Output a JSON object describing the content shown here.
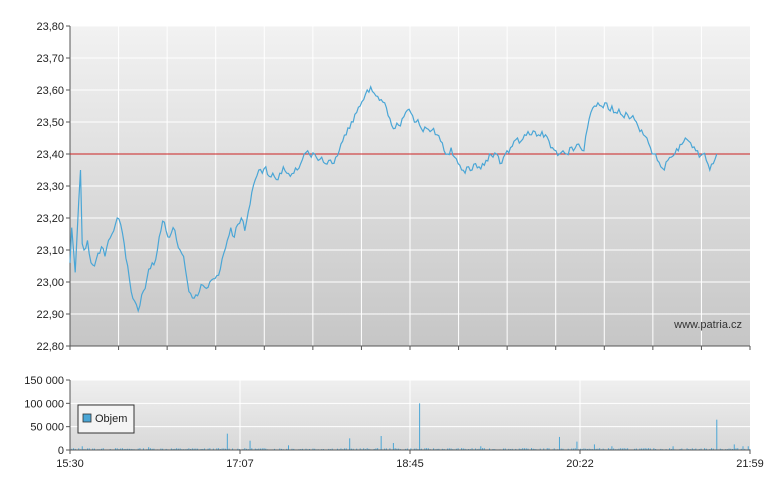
{
  "watermark": "www.patria.cz",
  "colors": {
    "price_line": "#4aa6d6",
    "reference_line": "#cc2222",
    "volume": "#4aa6d6"
  },
  "chart_data": [
    {
      "type": "line",
      "name": "price",
      "ylim": [
        22.8,
        23.8
      ],
      "y_ticks": [
        "22,80",
        "22,90",
        "23,00",
        "23,10",
        "23,20",
        "23,30",
        "23,40",
        "23,50",
        "23,60",
        "23,70",
        "23,80"
      ],
      "reference_value": 23.4,
      "x_range_minutes": [
        930,
        1319
      ],
      "grid": true,
      "points": [
        [
          930,
          23.06
        ],
        [
          931,
          23.17
        ],
        [
          933,
          23.03
        ],
        [
          935,
          23.25
        ],
        [
          936,
          23.35
        ],
        [
          937,
          23.12
        ],
        [
          938,
          23.1
        ],
        [
          940,
          23.13
        ],
        [
          942,
          23.06
        ],
        [
          944,
          23.05
        ],
        [
          946,
          23.09
        ],
        [
          948,
          23.11
        ],
        [
          950,
          23.08
        ],
        [
          952,
          23.13
        ],
        [
          954,
          23.15
        ],
        [
          956,
          23.18
        ],
        [
          957,
          23.2
        ],
        [
          959,
          23.18
        ],
        [
          961,
          23.12
        ],
        [
          963,
          23.05
        ],
        [
          965,
          22.97
        ],
        [
          967,
          22.94
        ],
        [
          969,
          22.91
        ],
        [
          971,
          22.96
        ],
        [
          973,
          22.98
        ],
        [
          975,
          23.04
        ],
        [
          977,
          23.06
        ],
        [
          979,
          23.07
        ],
        [
          980,
          23.1
        ],
        [
          982,
          23.16
        ],
        [
          983,
          23.19
        ],
        [
          985,
          23.16
        ],
        [
          987,
          23.14
        ],
        [
          989,
          23.17
        ],
        [
          991,
          23.13
        ],
        [
          993,
          23.1
        ],
        [
          995,
          23.08
        ],
        [
          996,
          23.04
        ],
        [
          998,
          22.97
        ],
        [
          1000,
          22.95
        ],
        [
          1002,
          22.96
        ],
        [
          1004,
          22.97
        ],
        [
          1006,
          22.99
        ],
        [
          1008,
          22.98
        ],
        [
          1010,
          23.0
        ],
        [
          1012,
          23.01
        ],
        [
          1014,
          23.02
        ],
        [
          1016,
          23.04
        ],
        [
          1018,
          23.09
        ],
        [
          1020,
          23.13
        ],
        [
          1022,
          23.17
        ],
        [
          1024,
          23.14
        ],
        [
          1026,
          23.18
        ],
        [
          1028,
          23.2
        ],
        [
          1030,
          23.16
        ],
        [
          1032,
          23.22
        ],
        [
          1034,
          23.28
        ],
        [
          1036,
          23.32
        ],
        [
          1038,
          23.35
        ],
        [
          1040,
          23.34
        ],
        [
          1042,
          23.36
        ],
        [
          1044,
          23.33
        ],
        [
          1046,
          23.34
        ],
        [
          1048,
          23.32
        ],
        [
          1050,
          23.34
        ],
        [
          1052,
          23.36
        ],
        [
          1054,
          23.34
        ],
        [
          1056,
          23.33
        ],
        [
          1058,
          23.34
        ],
        [
          1060,
          23.35
        ],
        [
          1062,
          23.37
        ],
        [
          1064,
          23.4
        ],
        [
          1066,
          23.41
        ],
        [
          1068,
          23.39
        ],
        [
          1070,
          23.4
        ],
        [
          1072,
          23.38
        ],
        [
          1074,
          23.39
        ],
        [
          1076,
          23.37
        ],
        [
          1078,
          23.38
        ],
        [
          1080,
          23.37
        ],
        [
          1082,
          23.39
        ],
        [
          1084,
          23.41
        ],
        [
          1086,
          23.44
        ],
        [
          1088,
          23.46
        ],
        [
          1090,
          23.48
        ],
        [
          1092,
          23.5
        ],
        [
          1094,
          23.53
        ],
        [
          1096,
          23.55
        ],
        [
          1098,
          23.57
        ],
        [
          1100,
          23.6
        ],
        [
          1102,
          23.61
        ],
        [
          1104,
          23.59
        ],
        [
          1106,
          23.58
        ],
        [
          1108,
          23.57
        ],
        [
          1110,
          23.56
        ],
        [
          1112,
          23.52
        ],
        [
          1114,
          23.49
        ],
        [
          1116,
          23.48
        ],
        [
          1118,
          23.49
        ],
        [
          1120,
          23.51
        ],
        [
          1122,
          23.53
        ],
        [
          1124,
          23.54
        ],
        [
          1126,
          23.52
        ],
        [
          1128,
          23.5
        ],
        [
          1130,
          23.49
        ],
        [
          1132,
          23.47
        ],
        [
          1134,
          23.48
        ],
        [
          1136,
          23.47
        ],
        [
          1138,
          23.48
        ],
        [
          1140,
          23.46
        ],
        [
          1142,
          23.44
        ],
        [
          1144,
          23.41
        ],
        [
          1146,
          23.4
        ],
        [
          1148,
          23.42
        ],
        [
          1150,
          23.39
        ],
        [
          1152,
          23.37
        ],
        [
          1154,
          23.35
        ],
        [
          1156,
          23.34
        ],
        [
          1158,
          23.36
        ],
        [
          1160,
          23.35
        ],
        [
          1162,
          23.37
        ],
        [
          1164,
          23.36
        ],
        [
          1166,
          23.37
        ],
        [
          1168,
          23.38
        ],
        [
          1170,
          23.4
        ],
        [
          1172,
          23.39
        ],
        [
          1174,
          23.4
        ],
        [
          1176,
          23.37
        ],
        [
          1178,
          23.39
        ],
        [
          1180,
          23.41
        ],
        [
          1182,
          23.42
        ],
        [
          1184,
          23.44
        ],
        [
          1186,
          23.45
        ],
        [
          1188,
          23.44
        ],
        [
          1190,
          23.46
        ],
        [
          1192,
          23.47
        ],
        [
          1194,
          23.46
        ],
        [
          1196,
          23.47
        ],
        [
          1198,
          23.46
        ],
        [
          1200,
          23.47
        ],
        [
          1202,
          23.46
        ],
        [
          1204,
          23.44
        ],
        [
          1206,
          23.42
        ],
        [
          1208,
          23.41
        ],
        [
          1210,
          23.4
        ],
        [
          1212,
          23.41
        ],
        [
          1214,
          23.4
        ],
        [
          1216,
          23.42
        ],
        [
          1218,
          23.41
        ],
        [
          1220,
          23.43
        ],
        [
          1222,
          23.42
        ],
        [
          1224,
          23.41
        ],
        [
          1226,
          23.48
        ],
        [
          1228,
          23.53
        ],
        [
          1230,
          23.55
        ],
        [
          1232,
          23.56
        ],
        [
          1234,
          23.55
        ],
        [
          1236,
          23.56
        ],
        [
          1238,
          23.54
        ],
        [
          1240,
          23.55
        ],
        [
          1242,
          23.53
        ],
        [
          1244,
          23.54
        ],
        [
          1246,
          23.52
        ],
        [
          1248,
          23.53
        ],
        [
          1250,
          23.51
        ],
        [
          1252,
          23.52
        ],
        [
          1254,
          23.5
        ],
        [
          1256,
          23.47
        ],
        [
          1258,
          23.46
        ],
        [
          1260,
          23.45
        ],
        [
          1262,
          23.42
        ],
        [
          1264,
          23.4
        ],
        [
          1266,
          23.38
        ],
        [
          1268,
          23.36
        ],
        [
          1270,
          23.35
        ],
        [
          1272,
          23.38
        ],
        [
          1274,
          23.39
        ],
        [
          1276,
          23.4
        ],
        [
          1278,
          23.41
        ],
        [
          1280,
          23.43
        ],
        [
          1282,
          23.45
        ],
        [
          1284,
          23.44
        ],
        [
          1286,
          23.42
        ],
        [
          1288,
          23.41
        ],
        [
          1290,
          23.39
        ],
        [
          1292,
          23.4
        ],
        [
          1294,
          23.38
        ],
        [
          1296,
          23.35
        ],
        [
          1298,
          23.37
        ],
        [
          1300,
          23.4
        ]
      ]
    },
    {
      "type": "bar",
      "name": "volume",
      "legend": [
        "Objem"
      ],
      "ylim": [
        0,
        150000
      ],
      "y_ticks": [
        "0",
        "50 000",
        "100 000",
        "150 000"
      ],
      "x_tick_labels": [
        "15:30",
        "17:07",
        "18:45",
        "20:22",
        "21:59"
      ],
      "grid": true,
      "spikes": [
        [
          937,
          8000
        ],
        [
          975,
          6000
        ],
        [
          1020,
          35000
        ],
        [
          1033,
          20000
        ],
        [
          1055,
          10000
        ],
        [
          1090,
          25000
        ],
        [
          1108,
          30000
        ],
        [
          1115,
          15000
        ],
        [
          1130,
          100000
        ],
        [
          1165,
          8000
        ],
        [
          1210,
          28000
        ],
        [
          1220,
          18000
        ],
        [
          1230,
          12000
        ],
        [
          1240,
          8000
        ],
        [
          1275,
          8000
        ],
        [
          1300,
          65000
        ],
        [
          1310,
          12000
        ],
        [
          1315,
          8000
        ],
        [
          1318,
          8000
        ]
      ],
      "baseline_min": 500,
      "baseline_max": 4000
    }
  ]
}
